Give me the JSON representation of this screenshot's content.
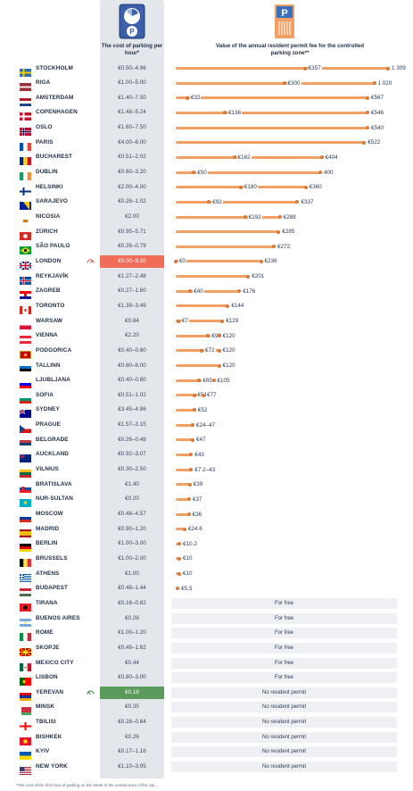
{
  "header": {
    "cost_heading": "The cost of parking per hour*",
    "permit_heading": "Value of the annual resident permit fee for the controlled parking zone**",
    "parking_sign_letter": "P"
  },
  "colors": {
    "bar_orange": "#f2a066",
    "column_grey": "#e3e6ea",
    "highlight_red": "#f06d59",
    "highlight_green": "#5a9a5a",
    "band_grey": "#eef0f3"
  },
  "footnote": "*The cost of the first hour of parking on the street in the central area of the city ...",
  "chart_data": {
    "type": "table",
    "columns": [
      "city",
      "cost_per_hour",
      "annual_permit"
    ],
    "rows": [
      {
        "city": "STOCKHOLM",
        "flag": "se",
        "cost": "€0.50–4.96",
        "permit_min": 357,
        "permit_max": 1309,
        "labels": [
          "€357",
          "1 309"
        ]
      },
      {
        "city": "RIGA",
        "flag": "lv",
        "cost": "€1.00–5.00",
        "permit_min": 300,
        "permit_max": 1020,
        "labels": [
          "€300",
          "1 020"
        ]
      },
      {
        "city": "AMSTERDAM",
        "flag": "nl",
        "cost": "€1.40–7.50",
        "permit_min": 32,
        "permit_max": 567,
        "labels": [
          "€32",
          "€567"
        ]
      },
      {
        "city": "COPENHAGEN",
        "flag": "dk",
        "cost": "€1.48–5.24",
        "permit_min": 136,
        "permit_max": 546,
        "labels": [
          "€136",
          "€546"
        ]
      },
      {
        "city": "OSLO",
        "flag": "no",
        "cost": "€1.60–7.50",
        "permit_min": 540,
        "permit_max": 540,
        "labels": [
          "€540"
        ]
      },
      {
        "city": "PARIS",
        "flag": "fr",
        "cost": "€4.00–6.00",
        "permit_min": 522,
        "permit_max": 522,
        "labels": [
          "€522"
        ]
      },
      {
        "city": "BUCHAREST",
        "flag": "ro",
        "cost": "€0.51–2.02",
        "permit_min": 162,
        "permit_max": 404,
        "labels": [
          "€162",
          "€404"
        ]
      },
      {
        "city": "DUBLIN",
        "flag": "ie",
        "cost": "€0.60–3.20",
        "permit_min": 50,
        "permit_max": 400,
        "labels": [
          "€50",
          "400"
        ]
      },
      {
        "city": "HELSINKI",
        "flag": "fi",
        "cost": "€2.00–4.00",
        "permit_min": 180,
        "permit_max": 360,
        "labels": [
          "€180",
          "€360"
        ]
      },
      {
        "city": "SARAJEVO",
        "flag": "ba",
        "cost": "€0.26–1.02",
        "permit_min": 92,
        "permit_max": 337,
        "labels": [
          "€92",
          "€337"
        ]
      },
      {
        "city": "NICOSIA",
        "flag": "cy",
        "cost": "€2.00",
        "permit_min": 192,
        "permit_max": 288,
        "labels": [
          "€192",
          "€288"
        ]
      },
      {
        "city": "ZÜRICH",
        "flag": "ch",
        "cost": "€0.95–5.71",
        "permit_min": 285,
        "permit_max": 285,
        "labels": [
          "€285"
        ]
      },
      {
        "city": "SÃO PAULO",
        "flag": "br",
        "cost": "€0.26–0.79",
        "permit_min": 272,
        "permit_max": 272,
        "labels": [
          "€272"
        ]
      },
      {
        "city": "LONDON",
        "flag": "gb",
        "cost": "€0.00–9.90",
        "highlight": "red",
        "gauge": true,
        "permit_min": 0,
        "permit_max": 236,
        "labels": [
          "€0",
          "€236"
        ]
      },
      {
        "city": "REYKJAVÍK",
        "flag": "is",
        "cost": "€1.27–2.48",
        "permit_min": 201,
        "permit_max": 201,
        "labels": [
          "€201"
        ]
      },
      {
        "city": "ZAGREB",
        "flag": "hr",
        "cost": "€0.27–1.60",
        "permit_min": 40,
        "permit_max": 176,
        "labels": [
          "€40",
          "€176"
        ]
      },
      {
        "city": "TORONTO",
        "flag": "ca",
        "cost": "€1.39–3.49",
        "permit_min": 144,
        "permit_max": 144,
        "labels": [
          "€144"
        ]
      },
      {
        "city": "WARSAW",
        "flag": "pl",
        "cost": "€0.84",
        "permit_min": 7,
        "permit_max": 129,
        "labels": [
          "€7",
          "€129"
        ]
      },
      {
        "city": "VIENNA",
        "flag": "at",
        "cost": "€2.20",
        "permit_min": 90,
        "permit_max": 120,
        "labels": [
          "€90",
          "€120"
        ]
      },
      {
        "city": "PODGORICA",
        "flag": "me",
        "cost": "€0.40–0.60",
        "permit_min": 72,
        "permit_max": 120,
        "labels": [
          "€72",
          "€120"
        ]
      },
      {
        "city": "TALLINN",
        "flag": "ee",
        "cost": "€0.60–6.00",
        "permit_min": 120,
        "permit_max": 120,
        "labels": [
          "€120"
        ]
      },
      {
        "city": "LJUBLJANA",
        "flag": "si",
        "cost": "€0.40–0.80",
        "permit_min": 65,
        "permit_max": 105,
        "labels": [
          "€65",
          "€105"
        ]
      },
      {
        "city": "SOFIA",
        "flag": "bg",
        "cost": "€0.51–1.02",
        "permit_min": 51,
        "permit_max": 77,
        "labels": [
          "€51",
          "€77"
        ]
      },
      {
        "city": "SYDNEY",
        "flag": "au",
        "cost": "€3.45–4.86",
        "permit_min": 52,
        "permit_max": 52,
        "labels": [
          "€52"
        ]
      },
      {
        "city": "PRAGUE",
        "flag": "cz",
        "cost": "€1.57–3.15",
        "permit_min": 24,
        "permit_max": 47,
        "labels": [
          "€24–47"
        ],
        "single_label": true
      },
      {
        "city": "BELGRADE",
        "flag": "rs",
        "cost": "€0.26–0.48",
        "permit_min": 47,
        "permit_max": 47,
        "labels": [
          "€47"
        ]
      },
      {
        "city": "AUCKLAND",
        "flag": "nz",
        "cost": "€0.92–3.07",
        "permit_min": 43,
        "permit_max": 43,
        "labels": [
          "€43"
        ]
      },
      {
        "city": "VILNIUS",
        "flag": "lt",
        "cost": "€0.30–2.50",
        "permit_min": 7.2,
        "permit_max": 43,
        "labels": [
          "€7.2–43"
        ],
        "single_label": true
      },
      {
        "city": "BRATISLAVA",
        "flag": "sk",
        "cost": "€1.40",
        "permit_min": 39,
        "permit_max": 39,
        "labels": [
          "€39"
        ]
      },
      {
        "city": "NUR-SULTAN",
        "flag": "kz",
        "cost": "€0.20",
        "permit_min": 37,
        "permit_max": 37,
        "labels": [
          "€37"
        ]
      },
      {
        "city": "MOSCOW",
        "flag": "ru",
        "cost": "€0.48–4.57",
        "permit_min": 36,
        "permit_max": 36,
        "labels": [
          "€36"
        ]
      },
      {
        "city": "MADRID",
        "flag": "es",
        "cost": "€0.90–1.20",
        "permit_min": 24.6,
        "permit_max": 24.6,
        "labels": [
          "€24.6"
        ]
      },
      {
        "city": "BERLIN",
        "flag": "de",
        "cost": "€1.00–3.00",
        "permit_min": 10.2,
        "permit_max": 10.2,
        "labels": [
          "€10.2"
        ]
      },
      {
        "city": "BRUSSELS",
        "flag": "be",
        "cost": "€1.00–2.00",
        "permit_min": 10,
        "permit_max": 10,
        "labels": [
          "€10"
        ]
      },
      {
        "city": "ATHENS",
        "flag": "gr",
        "cost": "€1.00",
        "permit_min": 10,
        "permit_max": 10,
        "labels": [
          "€10"
        ]
      },
      {
        "city": "BUDAPEST",
        "flag": "hu",
        "cost": "€0.48–1.44",
        "permit_min": 5.5,
        "permit_max": 5.5,
        "labels": [
          "€5.5"
        ]
      },
      {
        "city": "TIRANA",
        "flag": "al",
        "cost": "€0.16–0.82",
        "status": "For free"
      },
      {
        "city": "BUENOS AIRES",
        "flag": "ar",
        "cost": "€0.26",
        "status": "For free"
      },
      {
        "city": "ROME",
        "flag": "it",
        "cost": "€1.00–1.20",
        "status": "For free"
      },
      {
        "city": "SKOPJE",
        "flag": "mk",
        "cost": "€0.49–1.62",
        "status": "For free"
      },
      {
        "city": "MEXICO CITY",
        "flag": "mx",
        "cost": "€0.44",
        "status": "For free"
      },
      {
        "city": "LISBON",
        "flag": "pt",
        "cost": "€0.80–3.00",
        "status": "For free"
      },
      {
        "city": "YEREVAN",
        "flag": "am",
        "cost": "€0.18",
        "highlight": "green",
        "gauge": true,
        "status": "No resident permit"
      },
      {
        "city": "MINSK",
        "flag": "by",
        "cost": "€0.35",
        "status": "No resident permit"
      },
      {
        "city": "TBILISI",
        "flag": "ge",
        "cost": "€0.28–0.84",
        "status": "No resident permit"
      },
      {
        "city": "BISHKEK",
        "flag": "kg",
        "cost": "€0.26",
        "status": "No resident permit"
      },
      {
        "city": "KYIV",
        "flag": "ua",
        "cost": "€0.17–1.16",
        "status": "No resident permit"
      },
      {
        "city": "NEW YORK",
        "flag": "us",
        "cost": "€1.10–3.95",
        "status": "No resident permit"
      }
    ]
  }
}
